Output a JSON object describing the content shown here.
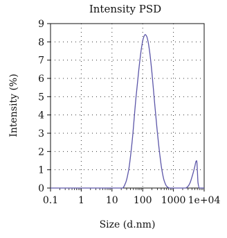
{
  "chart_data": {
    "type": "line",
    "title": "Intensity PSD",
    "xlabel": "Size (d.nm)",
    "ylabel": "Intensity (%)",
    "x_scale": "log",
    "xlim": [
      0.1,
      10000
    ],
    "ylim": [
      0,
      9
    ],
    "x_ticks": [
      {
        "value": 0.1,
        "label": "0.1"
      },
      {
        "value": 1,
        "label": "1"
      },
      {
        "value": 10,
        "label": "10"
      },
      {
        "value": 100,
        "label": "100"
      },
      {
        "value": 1000,
        "label": "1000"
      },
      {
        "value": 10000,
        "label": "1e+04"
      }
    ],
    "y_ticks": [
      {
        "value": 0,
        "label": "0"
      },
      {
        "value": 1,
        "label": "1"
      },
      {
        "value": 2,
        "label": "2"
      },
      {
        "value": 3,
        "label": "3"
      },
      {
        "value": 4,
        "label": "4"
      },
      {
        "value": 5,
        "label": "5"
      },
      {
        "value": 6,
        "label": "6"
      },
      {
        "value": 7,
        "label": "7"
      },
      {
        "value": 8,
        "label": "8"
      },
      {
        "value": 9,
        "label": "9"
      }
    ],
    "grid": "dotted",
    "line_color": "#5b55a8",
    "series": [
      {
        "x": [
          0.1,
          1,
          10,
          22,
          28,
          35,
          45,
          60,
          75,
          90,
          105,
          120,
          135,
          150,
          170,
          200,
          240,
          290,
          350,
          420,
          500,
          600,
          750,
          1000,
          1500,
          2500,
          3000,
          3500,
          4000,
          4500,
          5000,
          5400,
          5700,
          6000,
          6300,
          7000,
          10000
        ],
        "y": [
          0,
          0,
          0,
          0,
          0.3,
          1.0,
          2.5,
          4.9,
          6.5,
          7.6,
          8.2,
          8.4,
          8.3,
          8.0,
          7.4,
          6.3,
          4.8,
          3.3,
          2.0,
          1.0,
          0.4,
          0.1,
          0,
          0,
          0,
          0,
          0.1,
          0.3,
          0.6,
          0.9,
          1.2,
          1.45,
          1.5,
          1.0,
          0.3,
          0,
          0
        ]
      }
    ]
  }
}
